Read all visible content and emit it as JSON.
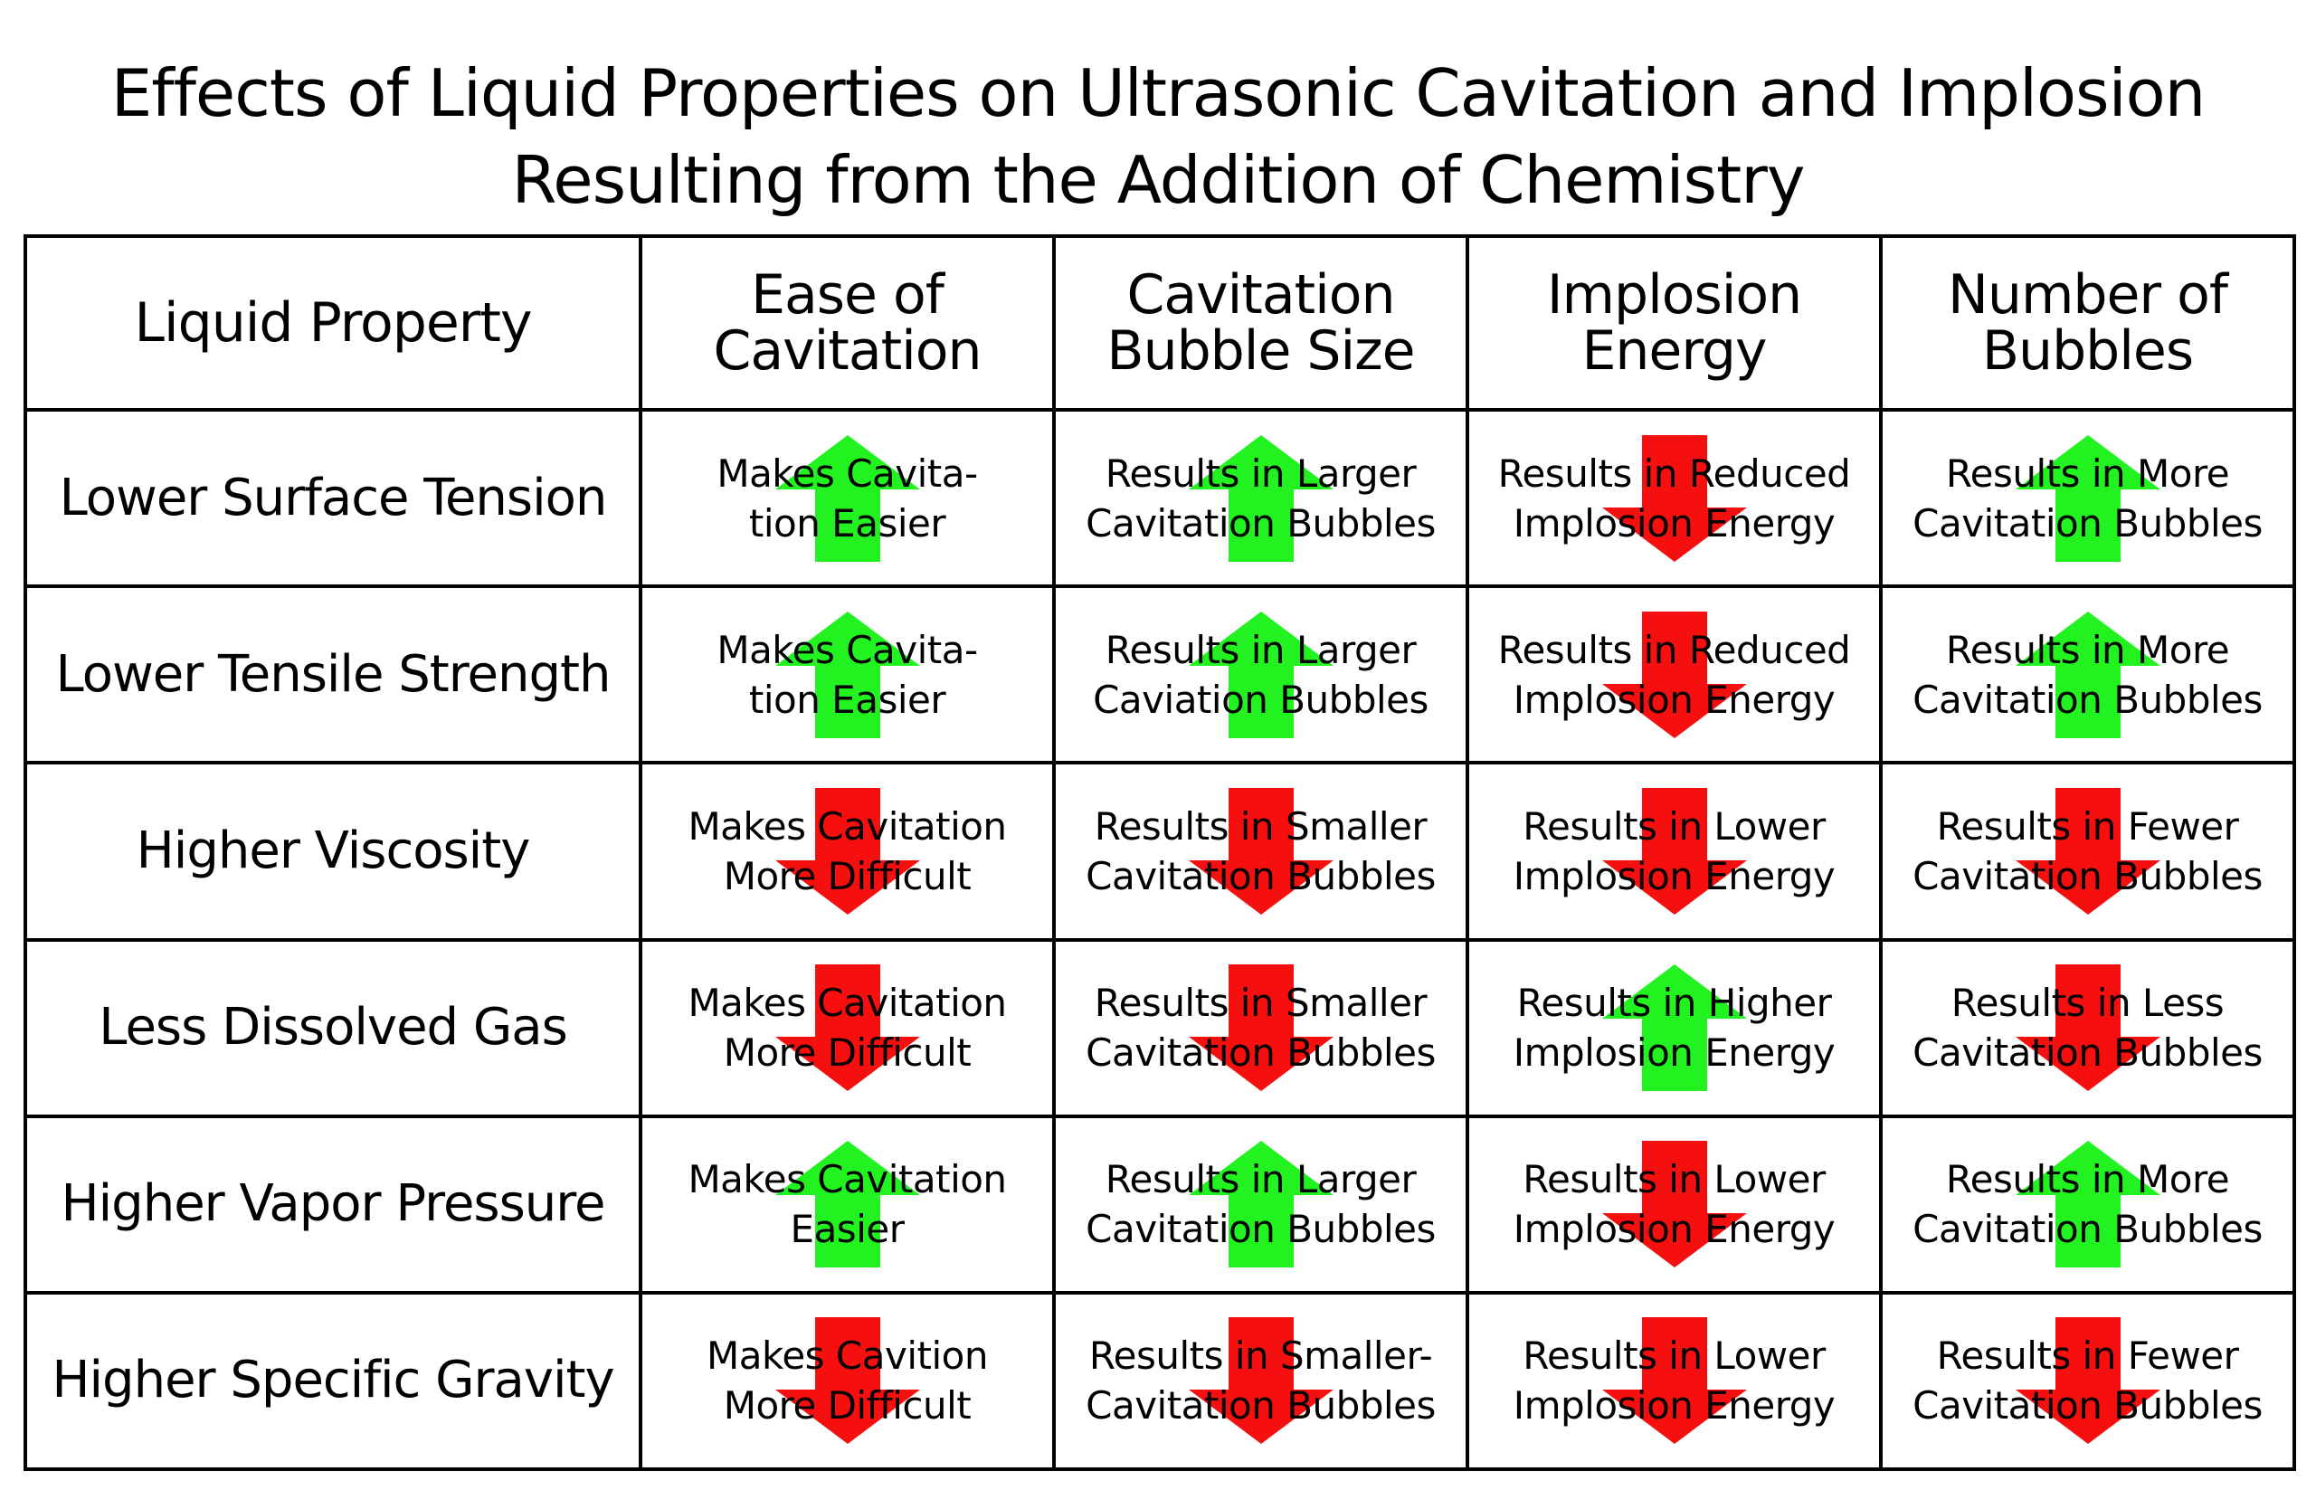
{
  "title": {
    "line1": "Effects of Liquid Properties on Ultrasonic Cavitation and Implosion",
    "line2": "Resulting from the Addition of Chemistry"
  },
  "colors": {
    "up": "#22f21f",
    "down": "#f50f0f"
  },
  "table": {
    "headers": [
      {
        "lines": [
          "Liquid Property"
        ]
      },
      {
        "lines": [
          "Ease of",
          "Cavitation"
        ]
      },
      {
        "lines": [
          "Cavitation",
          "Bubble Size"
        ]
      },
      {
        "lines": [
          "Implosion",
          "Energy"
        ]
      },
      {
        "lines": [
          "Number of",
          "Bubbles"
        ]
      }
    ],
    "rows": [
      {
        "property": "Lower Surface Tension",
        "cells": [
          {
            "arrow": "up",
            "icon": "green-up-arrow-icon",
            "lines": [
              "Makes Cavita-",
              "tion Easier"
            ]
          },
          {
            "arrow": "up",
            "icon": "green-up-arrow-icon",
            "lines": [
              "Results in Larger",
              "Cavitation Bubbles"
            ]
          },
          {
            "arrow": "down",
            "icon": "red-down-arrow-icon",
            "lines": [
              "Results in Reduced",
              "Implosion Energy"
            ]
          },
          {
            "arrow": "up",
            "icon": "green-up-arrow-icon",
            "lines": [
              "Results in More",
              "Cavitation Bubbles"
            ]
          }
        ]
      },
      {
        "property": "Lower Tensile Strength",
        "cells": [
          {
            "arrow": "up",
            "icon": "green-up-arrow-icon",
            "lines": [
              "Makes Cavita-",
              "tion Easier"
            ]
          },
          {
            "arrow": "up",
            "icon": "green-up-arrow-icon",
            "lines": [
              "Results in Larger",
              "Caviation Bubbles"
            ]
          },
          {
            "arrow": "down",
            "icon": "red-down-arrow-icon",
            "lines": [
              "Results in Reduced",
              "Implosion Energy"
            ]
          },
          {
            "arrow": "up",
            "icon": "green-up-arrow-icon",
            "lines": [
              "Results in More",
              "Cavitation Bubbles"
            ]
          }
        ]
      },
      {
        "property": "Higher Viscosity",
        "cells": [
          {
            "arrow": "down",
            "icon": "red-down-arrow-icon",
            "lines": [
              "Makes Cavitation",
              "More Difficult"
            ]
          },
          {
            "arrow": "down",
            "icon": "red-down-arrow-icon",
            "lines": [
              "Results in Smaller",
              "Cavitation Bubbles"
            ]
          },
          {
            "arrow": "down",
            "icon": "red-down-arrow-icon",
            "lines": [
              "Results in Lower",
              "Implosion Energy"
            ]
          },
          {
            "arrow": "down",
            "icon": "red-down-arrow-icon",
            "lines": [
              "Results in Fewer",
              "Cavitation Bubbles"
            ]
          }
        ]
      },
      {
        "property": "Less Dissolved Gas",
        "cells": [
          {
            "arrow": "down",
            "icon": "red-down-arrow-icon",
            "lines": [
              "Makes Cavitation",
              "More Difficult"
            ]
          },
          {
            "arrow": "down",
            "icon": "red-down-arrow-icon",
            "lines": [
              "Results in Smaller",
              "Cavitation Bubbles"
            ]
          },
          {
            "arrow": "up",
            "icon": "green-up-arrow-icon",
            "lines": [
              "Results in Higher",
              "Implosion Energy"
            ]
          },
          {
            "arrow": "down",
            "icon": "red-down-arrow-icon",
            "lines": [
              "Results in Less",
              "Cavitation Bubbles"
            ]
          }
        ]
      },
      {
        "property": "Higher Vapor Pressure",
        "cells": [
          {
            "arrow": "up",
            "icon": "green-up-arrow-icon",
            "lines": [
              "Makes Cavitation",
              "Easier"
            ]
          },
          {
            "arrow": "up",
            "icon": "green-up-arrow-icon",
            "lines": [
              "Results in Larger",
              "Cavitation Bubbles"
            ]
          },
          {
            "arrow": "down",
            "icon": "red-down-arrow-icon",
            "lines": [
              "Results in Lower",
              "Implosion Energy"
            ]
          },
          {
            "arrow": "up",
            "icon": "green-up-arrow-icon",
            "lines": [
              "Results in More",
              "Cavitation Bubbles"
            ]
          }
        ]
      },
      {
        "property": "Higher Specific Gravity",
        "cells": [
          {
            "arrow": "down",
            "icon": "red-down-arrow-icon",
            "lines": [
              "Makes Cavition",
              "More Difficult"
            ]
          },
          {
            "arrow": "down",
            "icon": "red-down-arrow-icon",
            "lines": [
              "Results in Smaller-",
              "Cavitation Bubbles"
            ]
          },
          {
            "arrow": "down",
            "icon": "red-down-arrow-icon",
            "lines": [
              "Results in Lower",
              "Implosion Energy"
            ]
          },
          {
            "arrow": "down",
            "icon": "red-down-arrow-icon",
            "lines": [
              "Results in Fewer",
              "Cavitation Bubbles"
            ]
          }
        ]
      }
    ]
  }
}
